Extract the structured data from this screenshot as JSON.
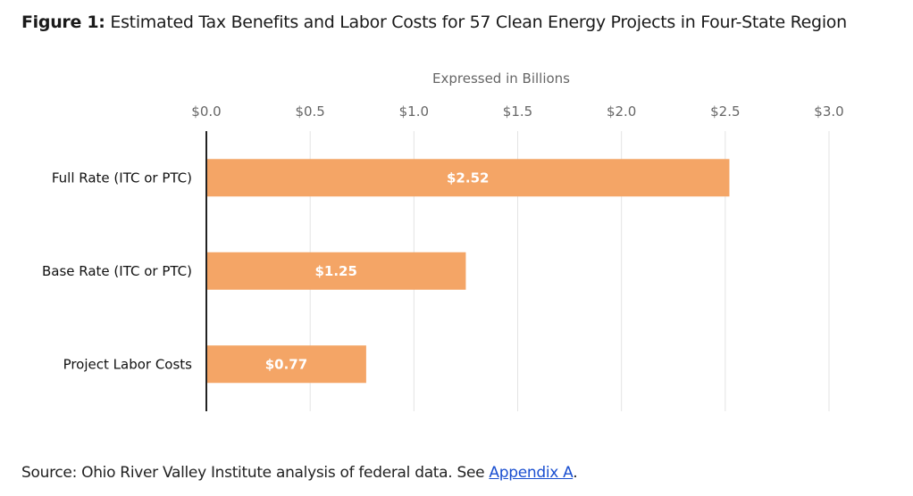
{
  "figure": {
    "number": "Figure 1:",
    "title": "Estimated Tax Benefits and Labor Costs for 57 Clean Energy Projects in Four-State Region"
  },
  "colors": {
    "bar": "#f4a566",
    "bar_label": "#ffffff",
    "grid": "#e3e3e3",
    "axis": "#222222",
    "tick": "#666666"
  },
  "chart_data": {
    "type": "bar",
    "orientation": "horizontal",
    "subtitle": "Expressed in Billions",
    "categories": [
      "Full Rate (ITC or PTC)",
      "Base Rate (ITC or PTC)",
      "Project Labor Costs"
    ],
    "values": [
      2.52,
      1.25,
      0.77
    ],
    "value_labels": [
      "$2.52",
      "$1.25",
      "$0.77"
    ],
    "xlim": [
      0,
      3.0
    ],
    "xticks": [
      0,
      0.5,
      1.0,
      1.5,
      2.0,
      2.5,
      3.0
    ],
    "xtick_labels": [
      "$0.0",
      "$0.5",
      "$1.0",
      "$1.5",
      "$2.0",
      "$2.5",
      "$3.0"
    ],
    "tick_position": "top",
    "grid": true,
    "legend": "none"
  },
  "source": {
    "prefix": "Source: Ohio River Valley Institute analysis of federal data. See ",
    "link_text": "Appendix A",
    "suffix": "."
  }
}
